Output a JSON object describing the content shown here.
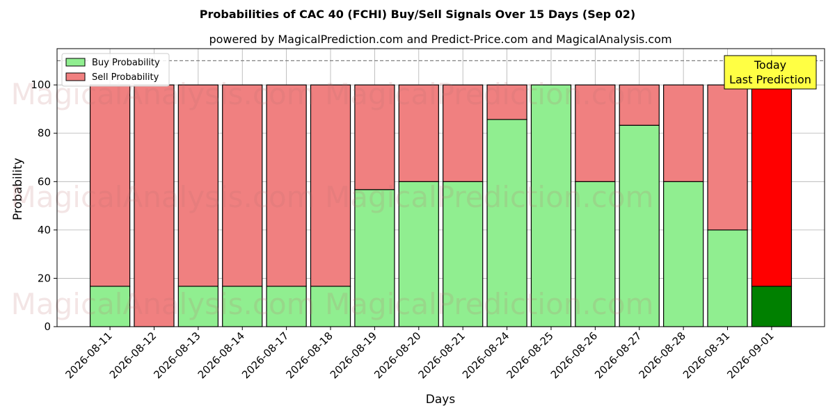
{
  "chart_data": {
    "type": "bar",
    "stacked": true,
    "title": "Probabilities of CAC 40 (FCHI) Buy/Sell Signals Over 15 Days (Sep 02)",
    "subtitle": "powered by MagicalPrediction.com and Predict-Price.com and MagicalAnalysis.com",
    "xlabel": "Days",
    "ylabel": "Probability",
    "ylim": [
      0,
      115
    ],
    "yticks": [
      0,
      20,
      40,
      60,
      80,
      100
    ],
    "grid": true,
    "legend_position": "top-left",
    "reference_line": 110,
    "categories": [
      "2026-08-11",
      "2026-08-12",
      "2026-08-13",
      "2026-08-14",
      "2026-08-17",
      "2026-08-18",
      "2026-08-19",
      "2026-08-20",
      "2026-08-21",
      "2026-08-24",
      "2026-08-25",
      "2026-08-26",
      "2026-08-27",
      "2026-08-28",
      "2026-08-31",
      "2026-09-01"
    ],
    "series": [
      {
        "name": "Buy Probability",
        "color": "#90ee90",
        "values": [
          16.7,
          0,
          16.7,
          16.7,
          16.7,
          16.7,
          56.7,
          60,
          60,
          85.7,
          100,
          60,
          83.3,
          60,
          40,
          16.7
        ]
      },
      {
        "name": "Sell Probability",
        "color": "#f08080",
        "values": [
          83.3,
          100,
          83.3,
          83.3,
          83.3,
          83.3,
          43.3,
          40,
          40,
          14.3,
          0,
          40,
          16.7,
          40,
          60,
          83.3
        ]
      }
    ],
    "highlight": {
      "index": 15,
      "buy_color": "#008000",
      "sell_color": "#ff0000"
    },
    "annotation": {
      "line1": "Today",
      "line2": "Last Prediction",
      "background": "#ffff44"
    },
    "watermarks": [
      "MagicalAnalysis.com",
      "MagicalPrediction.com"
    ]
  }
}
